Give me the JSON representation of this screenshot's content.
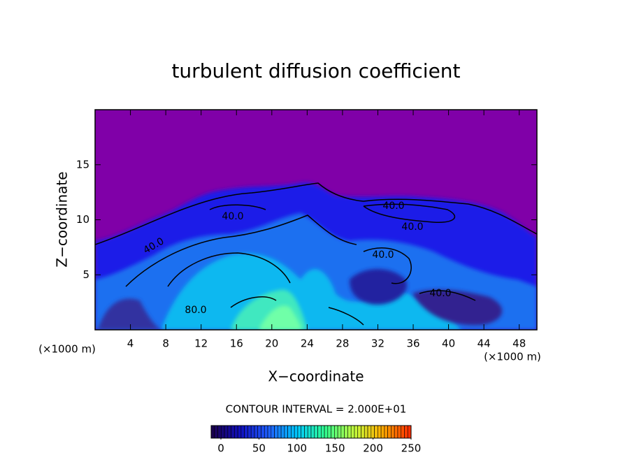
{
  "chart_data": {
    "type": "contour",
    "title": "turbulent diffusion coefficient",
    "x_label": "X−coordinate",
    "y_label": "Z−coordinate",
    "x_unit": "(×1000 m)",
    "y_unit": "(×1000 m)",
    "xlim": [
      0,
      50
    ],
    "ylim": [
      0,
      20
    ],
    "xticks": [
      4,
      8,
      12,
      16,
      20,
      24,
      28,
      32,
      36,
      40,
      44,
      48
    ],
    "yticks": [
      5,
      10,
      15
    ],
    "contour_interval_label": "CONTOUR INTERVAL = 2.000E+01",
    "contour_labels": [
      {
        "value": 40,
        "label": "40.0"
      },
      {
        "value": 40,
        "label": "40.0"
      },
      {
        "value": 40,
        "label": "40.0"
      },
      {
        "value": 40,
        "label": "40.0"
      },
      {
        "value": 40,
        "label": "40.0"
      },
      {
        "value": 40,
        "label": "40.0"
      },
      {
        "value": 80,
        "label": "80.0"
      }
    ],
    "clim": [
      0,
      250
    ],
    "colorbar_ticks": [
      0,
      50,
      100,
      150,
      200,
      250
    ],
    "colormap": [
      "#1a0050",
      "#1010c0",
      "#2060ff",
      "#00c8ff",
      "#30ff90",
      "#c0ff40",
      "#ffb000",
      "#ff3000"
    ]
  }
}
